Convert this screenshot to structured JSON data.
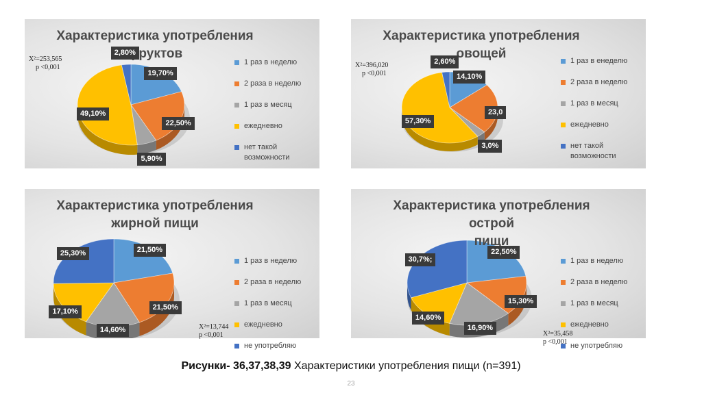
{
  "chart_data": [
    {
      "type": "pie",
      "title_lines": [
        "Характеристика употребления",
        "фруктов"
      ],
      "stat_lines": [
        "X²=253,565",
        "p <0,001"
      ],
      "categories": [
        "1 раз в неделю",
        "2 раза в неделю",
        "1 раз в месяц",
        "ежедневно",
        "нет такой возможности"
      ],
      "values": [
        19.7,
        22.5,
        5.9,
        49.1,
        2.8
      ],
      "data_labels": [
        "19,70%",
        "22,50%",
        "5,90%",
        "49,10%",
        "2,80%"
      ],
      "colors": [
        "#5B9BD5",
        "#ED7D31",
        "#A5A5A5",
        "#FFC000",
        "#4472C4"
      ],
      "legend": "right"
    },
    {
      "type": "pie",
      "title_lines": [
        "Характеристика употребления",
        "овощей"
      ],
      "stat_lines": [
        "X²=396,020",
        "p <0,001"
      ],
      "categories": [
        "1 раз в енеделю",
        "2 раза в неделю",
        "1 раз в месяц",
        "ежедневно",
        "нет такой возможности"
      ],
      "values": [
        14.1,
        23.0,
        3.0,
        57.3,
        2.6
      ],
      "data_labels": [
        "14,10%",
        "23,0",
        "3,0%",
        "57,30%",
        "2,60%"
      ],
      "colors": [
        "#5B9BD5",
        "#ED7D31",
        "#A5A5A5",
        "#FFC000",
        "#4472C4"
      ],
      "legend": "right"
    },
    {
      "type": "pie",
      "title_lines": [
        "Характеристика употребления",
        "жирной пищи"
      ],
      "stat_lines": [
        "X²=13,744",
        "p <0,001"
      ],
      "categories": [
        "1 раз в неделю",
        "2 раза в неделю",
        "1 раз в месяц",
        "ежедневно",
        "не употребляю"
      ],
      "values": [
        21.5,
        21.5,
        14.6,
        17.1,
        25.3
      ],
      "data_labels": [
        "21,50%",
        "21,50%",
        "14,60%",
        "17,10%",
        "25,30%"
      ],
      "colors": [
        "#5B9BD5",
        "#ED7D31",
        "#A5A5A5",
        "#FFC000",
        "#4472C4"
      ],
      "legend": "right"
    },
    {
      "type": "pie",
      "title_lines": [
        "Характеристика употребления острой",
        "пищи"
      ],
      "stat_lines": [
        "X²=35,458",
        "p <0,001"
      ],
      "categories": [
        "1 раз в неделю",
        "2 раза в неделю",
        "1 раз в месяц",
        "ежедневно",
        "не употребляю"
      ],
      "values": [
        22.5,
        15.3,
        16.9,
        14.6,
        30.7
      ],
      "data_labels": [
        "22,50%",
        "15,30%",
        "16,90%",
        "14,60%",
        "30,7%;"
      ],
      "colors": [
        "#5B9BD5",
        "#ED7D31",
        "#A5A5A5",
        "#FFC000",
        "#4472C4"
      ],
      "legend": "right"
    }
  ],
  "caption": {
    "bold": "Рисунки- 36,37,38,39",
    "text": " Характеристики употребления пищи (n=391)"
  },
  "page_number": "23"
}
